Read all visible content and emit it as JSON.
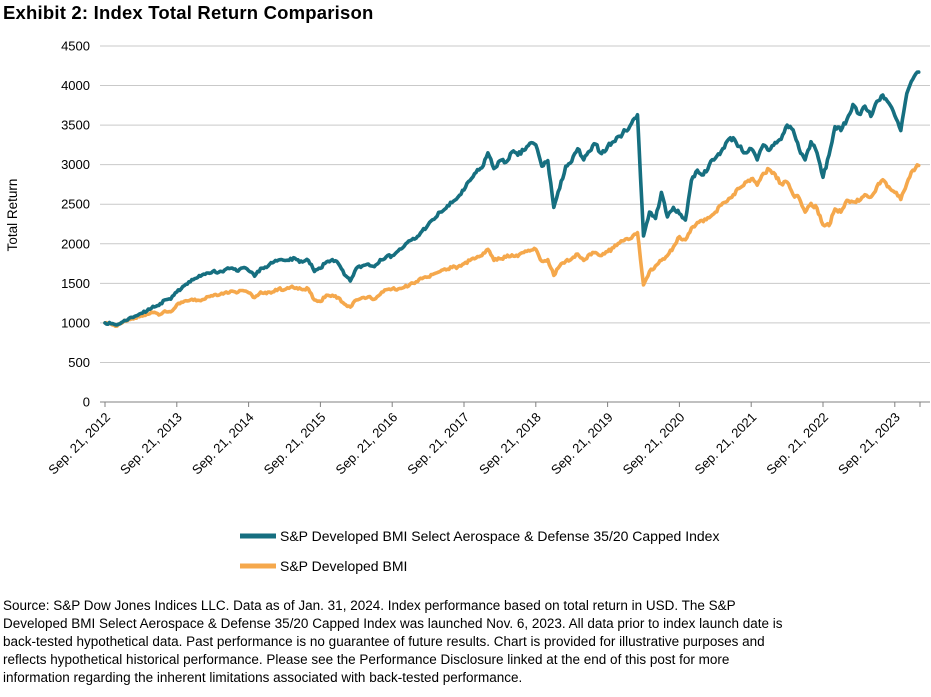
{
  "title": "Exhibit 2: Index Total Return Comparison",
  "chart_data": {
    "type": "line",
    "title": "Exhibit 2: Index Total Return Comparison",
    "xlabel": "",
    "ylabel": "Total Return",
    "ylim": [
      0,
      4500
    ],
    "ytick_step": 500,
    "grid": "horizontal",
    "legend_position": "bottom",
    "x_tick_labels": [
      "Sep. 21, 2012",
      "Sep. 21, 2013",
      "Sep. 21, 2014",
      "Sep. 21, 2015",
      "Sep. 21, 2016",
      "Sep. 21, 2017",
      "Sep. 21, 2018",
      "Sep. 21, 2019",
      "Sep. 21, 2020",
      "Sep. 21, 2021",
      "Sep. 21, 2022",
      "Sep. 21, 2023"
    ],
    "points_per_year": 12,
    "series": [
      {
        "name": "S&P Developed BMI Select Aerospace & Defense 35/20 Capped Index",
        "color": "#166f80",
        "values": [
          1000,
          990,
          975,
          1015,
          1055,
          1085,
          1120,
          1150,
          1210,
          1220,
          1290,
          1300,
          1390,
          1460,
          1520,
          1560,
          1590,
          1630,
          1650,
          1640,
          1670,
          1690,
          1660,
          1695,
          1660,
          1590,
          1690,
          1700,
          1760,
          1795,
          1790,
          1815,
          1800,
          1770,
          1790,
          1650,
          1690,
          1770,
          1800,
          1750,
          1610,
          1530,
          1690,
          1720,
          1745,
          1710,
          1800,
          1835,
          1850,
          1910,
          1970,
          2040,
          2070,
          2160,
          2240,
          2310,
          2400,
          2450,
          2520,
          2590,
          2680,
          2800,
          2900,
          2960,
          3150,
          2950,
          3050,
          3030,
          3160,
          3120,
          3180,
          3270,
          3250,
          2980,
          3050,
          2460,
          2700,
          2980,
          3040,
          3200,
          3060,
          3170,
          3260,
          3140,
          3230,
          3290,
          3360,
          3430,
          3520,
          3630,
          2100,
          2400,
          2320,
          2650,
          2340,
          2460,
          2380,
          2300,
          2800,
          2930,
          2870,
          3000,
          3080,
          3170,
          3300,
          3340,
          3230,
          3150,
          3200,
          3060,
          3250,
          3180,
          3280,
          3320,
          3500,
          3440,
          3200,
          3060,
          3290,
          3150,
          2840,
          3120,
          3480,
          3430,
          3570,
          3760,
          3640,
          3740,
          3610,
          3800,
          3880,
          3780,
          3620,
          3430,
          3900,
          4080,
          4170
        ]
      },
      {
        "name": "S&P Developed BMI",
        "color": "#f5a84c",
        "values": [
          1000,
          985,
          960,
          1010,
          1045,
          1060,
          1090,
          1110,
          1130,
          1100,
          1150,
          1140,
          1230,
          1260,
          1280,
          1300,
          1280,
          1330,
          1340,
          1350,
          1380,
          1400,
          1380,
          1410,
          1380,
          1320,
          1390,
          1370,
          1390,
          1430,
          1420,
          1450,
          1445,
          1420,
          1430,
          1290,
          1270,
          1350,
          1350,
          1320,
          1240,
          1200,
          1290,
          1320,
          1330,
          1300,
          1360,
          1420,
          1430,
          1430,
          1450,
          1490,
          1520,
          1560,
          1580,
          1620,
          1650,
          1670,
          1700,
          1710,
          1750,
          1790,
          1820,
          1850,
          1930,
          1790,
          1810,
          1830,
          1860,
          1840,
          1890,
          1910,
          1930,
          1780,
          1800,
          1600,
          1720,
          1780,
          1810,
          1870,
          1790,
          1870,
          1890,
          1850,
          1900,
          1950,
          2010,
          2060,
          2070,
          2140,
          1480,
          1650,
          1720,
          1790,
          1850,
          1960,
          2090,
          2050,
          2200,
          2270,
          2280,
          2330,
          2400,
          2490,
          2540,
          2620,
          2700,
          2780,
          2820,
          2740,
          2890,
          2940,
          2880,
          2760,
          2780,
          2620,
          2580,
          2400,
          2510,
          2450,
          2240,
          2230,
          2440,
          2400,
          2550,
          2530,
          2540,
          2620,
          2590,
          2720,
          2810,
          2720,
          2650,
          2560,
          2760,
          2930,
          2990
        ]
      }
    ]
  },
  "footer": {
    "lines": [
      "Source: S&P Dow Jones Indices LLC. Data as of Jan. 31, 2024. Index performance based on total return in USD. The S&P",
      "Developed BMI Select Aerospace & Defense 35/20 Capped Index was launched Nov. 6, 2023. All data prior to index launch date is",
      "back-tested hypothetical data. Past performance is no guarantee of future results. Chart is provided for illustrative purposes and",
      "reflects hypothetical historical performance. Please see the Performance Disclosure linked at the end of this post for more",
      "information regarding the inherent limitations associated with back-tested performance."
    ]
  }
}
